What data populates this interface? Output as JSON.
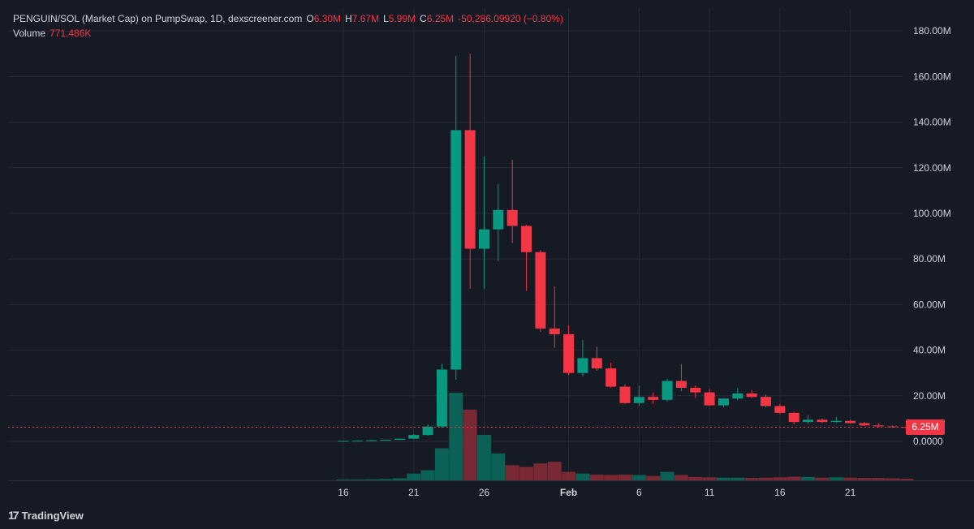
{
  "legend": {
    "title": "PENGUIN/SOL (Market Cap) on PumpSwap, 1D, dexscreener.com",
    "o_label": "O",
    "o_value": "6.30M",
    "h_label": "H",
    "h_value": "7.67M",
    "l_label": "L",
    "l_value": "5.99M",
    "c_label": "C",
    "c_value": "6.25M",
    "change": "-50,286.09920 (−0.80%)",
    "volume_label": "Volume",
    "volume_value": "771.486K"
  },
  "last_price_tag": "6.25M",
  "brand": {
    "name": "TradingView",
    "logo_text": "17"
  },
  "colors": {
    "background": "#161a25",
    "up": "#089981",
    "down": "#f23645",
    "up_volume": "#0b6e5f",
    "down_volume": "#8a2d36",
    "grid": "#262a35",
    "axis_text": "#d1d4dc"
  },
  "chart_data": {
    "type": "candlestick",
    "title": "PENGUIN/SOL (Market Cap) on PumpSwap, 1D, dexscreener.com",
    "y_ticks": [
      "0.0000",
      "20.00M",
      "40.00M",
      "60.00M",
      "80.00M",
      "100.00M",
      "120.00M",
      "140.00M",
      "160.00M",
      "180.00M"
    ],
    "ylim_millions": [
      -18.5,
      184
    ],
    "x_ticks": [
      {
        "label": "16",
        "index": 0
      },
      {
        "label": "21",
        "index": 5
      },
      {
        "label": "26",
        "index": 10
      },
      {
        "label": "Feb",
        "index": 16,
        "bold": true
      },
      {
        "label": "6",
        "index": 21
      },
      {
        "label": "11",
        "index": 26
      },
      {
        "label": "16",
        "index": 31
      },
      {
        "label": "21",
        "index": 36
      }
    ],
    "last_close": "6.25M",
    "candles": [
      {
        "date": "Jan 16",
        "o": 0.1,
        "h": 0.3,
        "l": 0.05,
        "c": 0.2,
        "vol": 0.2
      },
      {
        "date": "Jan 17",
        "o": 0.2,
        "h": 0.4,
        "l": 0.1,
        "c": 0.3,
        "vol": 0.25
      },
      {
        "date": "Jan 18",
        "o": 0.3,
        "h": 0.6,
        "l": 0.2,
        "c": 0.5,
        "vol": 0.3
      },
      {
        "date": "Jan 19",
        "o": 0.5,
        "h": 0.8,
        "l": 0.4,
        "c": 0.7,
        "vol": 0.4
      },
      {
        "date": "Jan 20",
        "o": 0.7,
        "h": 1.3,
        "l": 0.6,
        "c": 1.2,
        "vol": 0.6
      },
      {
        "date": "Jan 21",
        "o": 1.2,
        "h": 3.2,
        "l": 1.0,
        "c": 2.8,
        "vol": 2.0
      },
      {
        "date": "Jan 22",
        "o": 2.8,
        "h": 7.5,
        "l": 2.5,
        "c": 6.5,
        "vol": 3.0
      },
      {
        "date": "Jan 23",
        "o": 6.5,
        "h": 34.0,
        "l": 6.0,
        "c": 31.5,
        "vol": 9.5
      },
      {
        "date": "Jan 24",
        "o": 31.5,
        "h": 169.0,
        "l": 27.0,
        "c": 136.5,
        "vol": 26.0
      },
      {
        "date": "Jan 25",
        "o": 136.5,
        "h": 170.0,
        "l": 67.0,
        "c": 84.5,
        "vol": 21.0
      },
      {
        "date": "Jan 26",
        "o": 84.5,
        "h": 125.0,
        "l": 67.0,
        "c": 93.0,
        "vol": 13.5
      },
      {
        "date": "Jan 27",
        "o": 93.0,
        "h": 113.0,
        "l": 79.0,
        "c": 101.5,
        "vol": 8.0
      },
      {
        "date": "Jan 28",
        "o": 101.5,
        "h": 123.5,
        "l": 87.0,
        "c": 94.5,
        "vol": 4.5
      },
      {
        "date": "Jan 29",
        "o": 94.5,
        "h": 95.0,
        "l": 66.0,
        "c": 83.0,
        "vol": 4.0
      },
      {
        "date": "Jan 30",
        "o": 83.0,
        "h": 84.0,
        "l": 48.0,
        "c": 49.5,
        "vol": 5.0
      },
      {
        "date": "Jan 31",
        "o": 49.5,
        "h": 68.0,
        "l": 41.0,
        "c": 47.0,
        "vol": 5.5
      },
      {
        "date": "Feb 1",
        "o": 47.0,
        "h": 51.0,
        "l": 29.0,
        "c": 30.0,
        "vol": 2.5
      },
      {
        "date": "Feb 2",
        "o": 30.0,
        "h": 44.5,
        "l": 28.5,
        "c": 36.5,
        "vol": 2.0
      },
      {
        "date": "Feb 3",
        "o": 36.5,
        "h": 41.5,
        "l": 31.0,
        "c": 32.0,
        "vol": 1.7
      },
      {
        "date": "Feb 4",
        "o": 32.0,
        "h": 34.5,
        "l": 23.5,
        "c": 24.0,
        "vol": 1.6
      },
      {
        "date": "Feb 5",
        "o": 24.0,
        "h": 25.0,
        "l": 16.5,
        "c": 16.8,
        "vol": 1.7
      },
      {
        "date": "Feb 6",
        "o": 16.8,
        "h": 24.5,
        "l": 15.5,
        "c": 19.5,
        "vol": 1.6
      },
      {
        "date": "Feb 7",
        "o": 19.5,
        "h": 21.5,
        "l": 16.5,
        "c": 18.2,
        "vol": 1.3
      },
      {
        "date": "Feb 8",
        "o": 18.2,
        "h": 27.5,
        "l": 17.5,
        "c": 26.5,
        "vol": 2.5
      },
      {
        "date": "Feb 9",
        "o": 26.5,
        "h": 34.0,
        "l": 22.0,
        "c": 23.5,
        "vol": 1.6
      },
      {
        "date": "Feb 10",
        "o": 23.5,
        "h": 24.5,
        "l": 19.0,
        "c": 21.5,
        "vol": 1.0
      },
      {
        "date": "Feb 11",
        "o": 21.5,
        "h": 23.0,
        "l": 15.5,
        "c": 15.8,
        "vol": 0.9
      },
      {
        "date": "Feb 12",
        "o": 15.8,
        "h": 19.0,
        "l": 15.0,
        "c": 18.8,
        "vol": 0.8
      },
      {
        "date": "Feb 13",
        "o": 18.8,
        "h": 23.5,
        "l": 18.0,
        "c": 21.0,
        "vol": 0.8
      },
      {
        "date": "Feb 14",
        "o": 21.0,
        "h": 22.5,
        "l": 19.0,
        "c": 19.5,
        "vol": 0.7
      },
      {
        "date": "Feb 15",
        "o": 19.5,
        "h": 20.5,
        "l": 15.0,
        "c": 15.5,
        "vol": 0.8
      },
      {
        "date": "Feb 16",
        "o": 15.5,
        "h": 16.5,
        "l": 12.0,
        "c": 12.5,
        "vol": 0.9
      },
      {
        "date": "Feb 17",
        "o": 12.5,
        "h": 13.0,
        "l": 7.5,
        "c": 8.5,
        "vol": 1.1
      },
      {
        "date": "Feb 18",
        "o": 8.5,
        "h": 11.5,
        "l": 7.8,
        "c": 9.5,
        "vol": 1.0
      },
      {
        "date": "Feb 19",
        "o": 9.5,
        "h": 10.0,
        "l": 8.0,
        "c": 8.5,
        "vol": 0.8
      },
      {
        "date": "Feb 20",
        "o": 8.5,
        "h": 10.8,
        "l": 8.0,
        "c": 9.0,
        "vol": 0.9
      },
      {
        "date": "Feb 21",
        "o": 9.0,
        "h": 9.5,
        "l": 7.8,
        "c": 8.0,
        "vol": 0.8
      },
      {
        "date": "Feb 22",
        "o": 8.0,
        "h": 8.5,
        "l": 6.8,
        "c": 7.0,
        "vol": 0.7
      },
      {
        "date": "Feb 23",
        "o": 7.0,
        "h": 8.0,
        "l": 6.2,
        "c": 6.6,
        "vol": 0.7
      },
      {
        "date": "Feb 24",
        "o": 6.6,
        "h": 7.0,
        "l": 6.0,
        "c": 6.3,
        "vol": 0.6
      },
      {
        "date": "Feb 25",
        "o": 6.3,
        "h": 7.67,
        "l": 5.99,
        "c": 6.25,
        "vol": 0.5
      }
    ]
  }
}
